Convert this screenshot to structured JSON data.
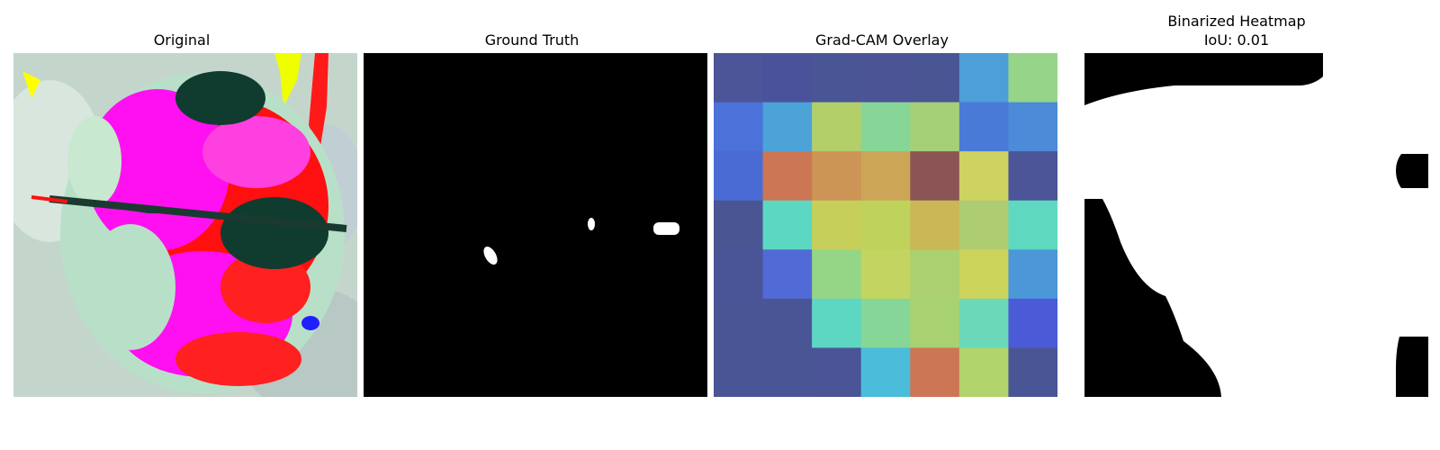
{
  "figure": {
    "panels": [
      {
        "title": "Original"
      },
      {
        "title": "Ground Truth"
      },
      {
        "title": "Grad-CAM Overlay"
      },
      {
        "title": "Binarized Heatmap",
        "subtitle": "IoU: 0.01"
      }
    ]
  },
  "gradcam": {
    "grid_size": 7,
    "cells": [
      [
        "#4b5597",
        "#4a539a",
        "#4a5596",
        "#4b5596",
        "#4a5594",
        "#4c9fd7",
        "#96d48a"
      ],
      [
        "#4b72d8",
        "#4ba3d7",
        "#b2cf6a",
        "#87d697",
        "#a5d077",
        "#4a7ad8",
        "#4b8bd8"
      ],
      [
        "#4b6bd4",
        "#cc7655",
        "#cc9455",
        "#cca556",
        "#8b5555",
        "#cdd260",
        "#4b5597"
      ],
      [
        "#4a5594",
        "#5cd7c1",
        "#c6cf5a",
        "#bfd35c",
        "#cab756",
        "#aecd72",
        "#5ed9c0"
      ],
      [
        "#4a5598",
        "#526ad6",
        "#94d685",
        "#c3d560",
        "#aad06f",
        "#ccd35a",
        "#4b97d8"
      ],
      [
        "#4a5596",
        "#4a5596",
        "#5ed7c2",
        "#86d797",
        "#a8d271",
        "#6bd8b7",
        "#4b5ad6"
      ],
      [
        "#4a5596",
        "#4a5595",
        "#4a5496",
        "#4bbcd9",
        "#cc7655",
        "#b1d46c",
        "#4a5596"
      ]
    ]
  }
}
